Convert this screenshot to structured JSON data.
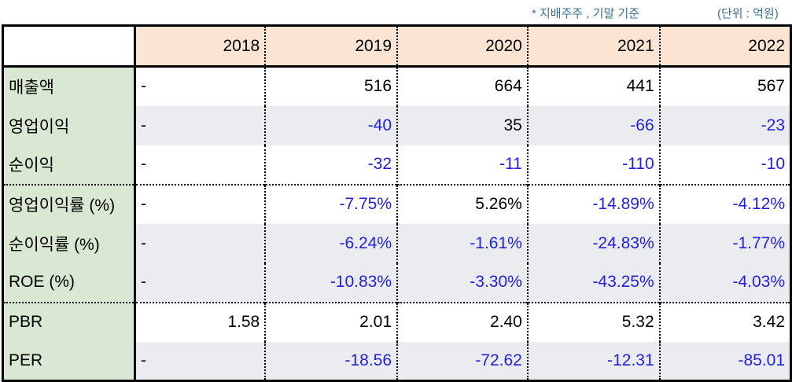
{
  "notes": {
    "basis": "* 지배주주 , 기말 기준",
    "unit": "(단위 : 억원)"
  },
  "table": {
    "years": [
      "2018",
      "2019",
      "2020",
      "2021",
      "2022"
    ],
    "rows": [
      {
        "label": "매출액",
        "values": [
          "-",
          "516",
          "664",
          "441",
          "567"
        ]
      },
      {
        "label": "영업이익",
        "values": [
          "-",
          "-40",
          "35",
          "-66",
          "-23"
        ]
      },
      {
        "label": "순이익",
        "values": [
          "-",
          "-32",
          "-11",
          "-110",
          "-10"
        ]
      },
      {
        "label": "영업이익률 (%)",
        "values": [
          "-",
          "-7.75%",
          "5.26%",
          "-14.89%",
          "-4.12%"
        ]
      },
      {
        "label": "순이익률 (%)",
        "values": [
          "-",
          "-6.24%",
          "-1.61%",
          "-24.83%",
          "-1.77%"
        ]
      },
      {
        "label": "ROE (%)",
        "values": [
          "-",
          "-10.83%",
          "-3.30%",
          "-43.25%",
          "-4.03%"
        ]
      },
      {
        "label": "PBR",
        "values": [
          "1.58",
          "2.01",
          "2.40",
          "5.32",
          "3.42"
        ]
      },
      {
        "label": "PER",
        "values": [
          "-",
          "-18.56",
          "-72.62",
          "-12.31",
          "-85.01"
        ]
      }
    ]
  },
  "colors": {
    "header_bg": "#fbe4d2",
    "label_bg": "#d8e8d2",
    "stripe_bg": "#ebecf0",
    "negative_text": "#2222dd",
    "note_text": "#3e6f8a"
  }
}
